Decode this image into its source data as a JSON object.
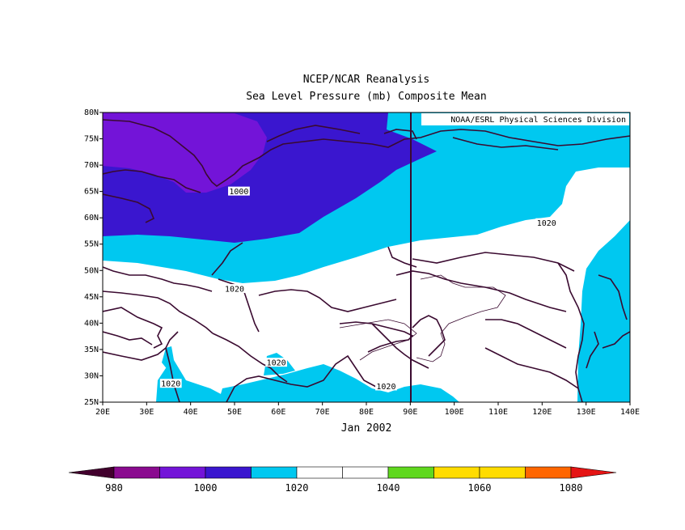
{
  "title_line1": "NCEP/NCAR Reanalysis",
  "title_line2": "Sea Level Pressure (mb) Composite Mean",
  "credit": "NOAA/ESRL Physical Sciences Division",
  "date_label": "Jan 2002",
  "lat_ticks": [
    "80N",
    "75N",
    "70N",
    "65N",
    "60N",
    "55N",
    "50N",
    "45N",
    "40N",
    "35N",
    "30N",
    "25N"
  ],
  "lon_ticks": [
    "20E",
    "30E",
    "40E",
    "50E",
    "60E",
    "70E",
    "80E",
    "90E",
    "100E",
    "110E",
    "120E",
    "130E",
    "140E"
  ],
  "map_extent": {
    "lon_min": 20,
    "lon_max": 140,
    "lat_min": 25,
    "lat_max": 80
  },
  "contour_labels": [
    {
      "text": "1000",
      "lon": 51,
      "lat": 65
    },
    {
      "text": "1020",
      "lon": 121,
      "lat": 59
    },
    {
      "text": "1020",
      "lon": 50,
      "lat": 46.5
    },
    {
      "text": "1020",
      "lon": 59.5,
      "lat": 32.5
    },
    {
      "text": "1020",
      "lon": 35.5,
      "lat": 28.5
    },
    {
      "text": "1020",
      "lon": 84.5,
      "lat": 28
    }
  ],
  "colorbar": {
    "colors": [
      "#42002d",
      "#8a0a8f",
      "#7314d8",
      "#3a16cf",
      "#00c8f0",
      "#ffffff",
      "#ffffff",
      "#5fd81e",
      "#ffdc00",
      "#ffdc00",
      "#ff6600",
      "#e51414"
    ],
    "labels": [
      "980",
      "1000",
      "1020",
      "1040",
      "1060",
      "1080"
    ]
  },
  "level_colors": {
    "lt_990": "#7314d8",
    "990_1010": "#3a16cf",
    "1010_1020": "#00c8f0",
    "1020_1030": "#ffffff",
    "coast_line": "#3a0a30"
  }
}
